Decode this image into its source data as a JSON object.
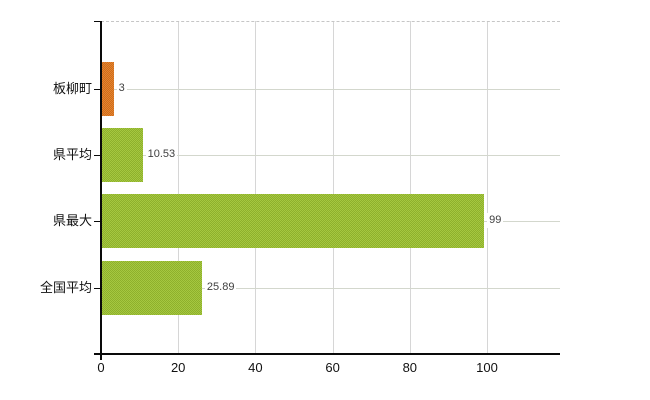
{
  "chart_data": {
    "type": "bar",
    "orientation": "horizontal",
    "title": "",
    "xlabel": "",
    "ylabel": "",
    "categories": [
      "板柳町",
      "県平均",
      "県最大",
      "全国平均"
    ],
    "values": [
      3,
      10.53,
      99,
      25.89
    ],
    "value_labels": [
      "3",
      "10.53",
      "99",
      "25.89"
    ],
    "bar_colors": [
      "#e47a1f",
      "#9ec431",
      "#9ec431",
      "#9ec431"
    ],
    "highlight_color": "#e47a1f",
    "series_color": "#9ec431",
    "x_ticks": [
      0,
      20,
      40,
      60,
      80,
      100
    ],
    "xlim": [
      0,
      119
    ],
    "grid": true,
    "legend_position": "none",
    "axis_color": "#0a0a0a",
    "grid_color": "#d6d6d6",
    "value_label_color": "#3f3f3f",
    "background_color": "#ffffff"
  }
}
